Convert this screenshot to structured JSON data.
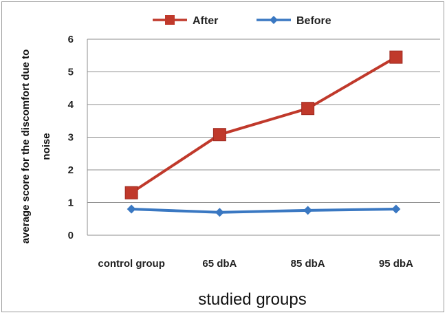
{
  "chart_data": {
    "type": "line",
    "categories": [
      "control group",
      "65 dbA",
      "85 dbA",
      "95 dbA"
    ],
    "series": [
      {
        "name": "After",
        "values": [
          1.3,
          3.08,
          3.88,
          5.45
        ],
        "color": "#c0392b",
        "marker": "square"
      },
      {
        "name": "Before",
        "values": [
          0.8,
          0.7,
          0.76,
          0.8
        ],
        "color": "#3a78c2",
        "marker": "diamond"
      }
    ],
    "title": "",
    "xlabel": "studied groups",
    "ylabel_lines": [
      "average score for the discomfort due to",
      "noise"
    ],
    "ylim": [
      0,
      6
    ],
    "yticks": [
      0,
      1,
      2,
      3,
      4,
      5,
      6
    ],
    "grid": true,
    "legend_position": "top"
  }
}
